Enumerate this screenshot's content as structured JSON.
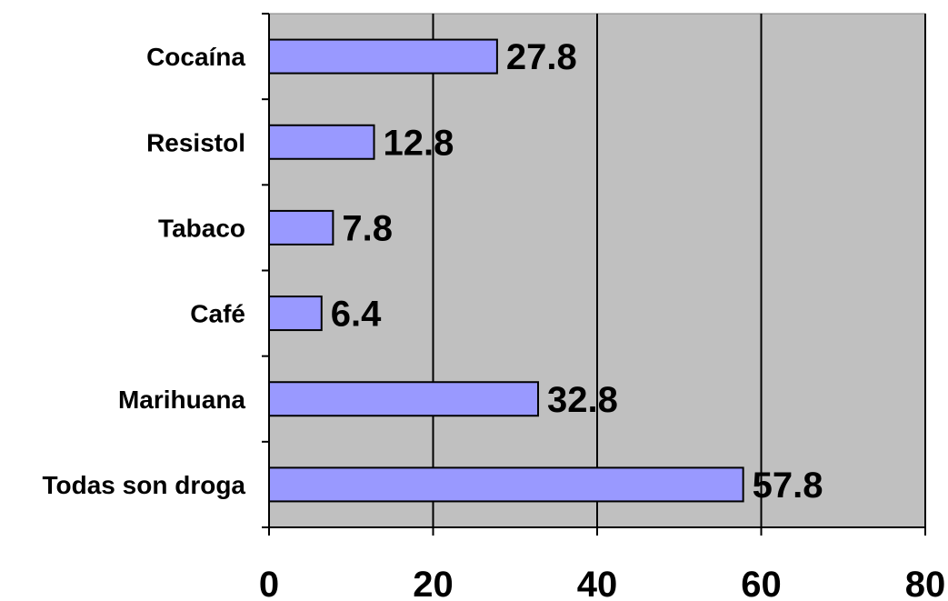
{
  "chart_data": {
    "type": "bar",
    "orientation": "horizontal",
    "categories": [
      "Cocaína",
      "Resistol",
      "Tabaco",
      "Café",
      "Marihuana",
      "Todas son droga"
    ],
    "values": [
      27.8,
      12.8,
      7.8,
      6.4,
      32.8,
      57.8
    ],
    "xlim": [
      0,
      80
    ],
    "x_ticks": [
      0,
      20,
      40,
      60,
      80
    ],
    "grid": "vertical",
    "legend": "none",
    "title": "",
    "xlabel": "",
    "ylabel": "",
    "colors": {
      "bar_fill": "#9999ff",
      "bar_stroke": "#000000",
      "plot_background": "#c0c0c0",
      "gridline": "#000000"
    }
  }
}
